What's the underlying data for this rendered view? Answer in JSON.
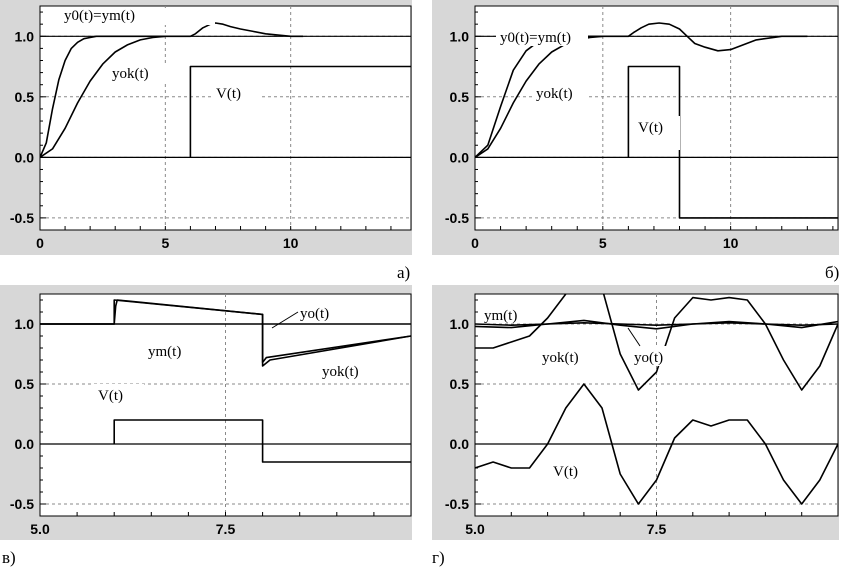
{
  "panel_labels": [
    "а)",
    "б)",
    "в)",
    "г)"
  ],
  "chart_data": [
    {
      "type": "line",
      "xlim": [
        0,
        14.8
      ],
      "ylim": [
        -0.6,
        1.25
      ],
      "xticks": [
        0,
        5,
        10
      ],
      "xtick_labels": [
        "0",
        "5",
        "10"
      ],
      "yticks": [
        1.0,
        0.5,
        0.0,
        -0.5
      ],
      "ytick_labels": [
        "1.0",
        "0.5",
        "0.0",
        "-0.5"
      ],
      "grid": true,
      "series": [
        {
          "name": "y0(t)=ym(t)",
          "x": [
            0,
            0.25,
            0.5,
            0.75,
            1,
            1.25,
            1.5,
            1.75,
            2,
            2.25,
            2.5,
            3,
            3.5,
            4,
            4.5,
            5,
            5.5,
            6,
            6.2,
            6.5,
            6.8,
            7,
            7.3,
            7.6,
            8,
            8.5,
            9,
            9.5,
            10,
            10.5
          ],
          "y": [
            0,
            0.12,
            0.4,
            0.64,
            0.8,
            0.9,
            0.95,
            0.98,
            0.99,
            1.0,
            1.0,
            1.0,
            1.0,
            1.0,
            1.0,
            1.0,
            1.0,
            1.0,
            1.02,
            1.07,
            1.1,
            1.11,
            1.1,
            1.08,
            1.06,
            1.04,
            1.02,
            1.01,
            1.0,
            1.0
          ]
        },
        {
          "name": "yok(t)",
          "x": [
            0,
            0.5,
            1,
            1.5,
            2,
            2.5,
            3,
            3.5,
            4,
            4.5,
            5
          ],
          "y": [
            0,
            0.07,
            0.24,
            0.45,
            0.63,
            0.77,
            0.87,
            0.93,
            0.97,
            0.99,
            1.0
          ]
        },
        {
          "name": "V(t)",
          "x": [
            6,
            6,
            14.8
          ],
          "y": [
            0,
            0.75,
            0.75
          ]
        },
        {
          "name": "",
          "x": [
            0,
            14.8
          ],
          "y": [
            0,
            0
          ]
        },
        {
          "name": "",
          "x": [
            0,
            14.8
          ],
          "y": [
            1,
            1
          ]
        }
      ],
      "annotations": [
        "y0(t)=ym(t)",
        "yok(t)",
        "V(t)"
      ]
    },
    {
      "type": "line",
      "xlim": [
        0,
        14.2
      ],
      "ylim": [
        -0.6,
        1.25
      ],
      "xticks": [
        0,
        5,
        10
      ],
      "xtick_labels": [
        "0",
        "5",
        "10"
      ],
      "yticks": [
        1.0,
        0.5,
        0.0,
        -0.5
      ],
      "ytick_labels": [
        "1.0",
        "0.5",
        "0.0",
        "-0.5"
      ],
      "grid": true,
      "series": [
        {
          "name": "y0(t)=ym(t)",
          "x": [
            0,
            0.5,
            1,
            1.5,
            2,
            2.5,
            3,
            3.5,
            4,
            5,
            6,
            6.2,
            6.5,
            6.8,
            7.2,
            7.6,
            8,
            8.3,
            8.6,
            9,
            9.5,
            10,
            10.5,
            11,
            12,
            13
          ],
          "y": [
            0,
            0.1,
            0.42,
            0.72,
            0.88,
            0.96,
            0.99,
            1.0,
            1.0,
            1.0,
            1.0,
            1.03,
            1.07,
            1.1,
            1.11,
            1.1,
            1.06,
            1.0,
            0.94,
            0.91,
            0.88,
            0.89,
            0.93,
            0.97,
            1.0,
            1.0
          ]
        },
        {
          "name": "yok(t)",
          "x": [
            0,
            0.5,
            1,
            1.5,
            2,
            2.5,
            3,
            3.5,
            4,
            4.5,
            5
          ],
          "y": [
            0,
            0.07,
            0.24,
            0.45,
            0.63,
            0.77,
            0.87,
            0.93,
            0.97,
            0.99,
            1.0
          ]
        },
        {
          "name": "V(t)",
          "x": [
            6,
            6,
            8,
            8,
            14.2
          ],
          "y": [
            0,
            0.75,
            0.75,
            -0.5,
            -0.5
          ]
        },
        {
          "name": "",
          "x": [
            0,
            14.2
          ],
          "y": [
            0,
            0
          ]
        },
        {
          "name": "",
          "x": [
            0,
            14.2
          ],
          "y": [
            1,
            1
          ]
        }
      ],
      "annotations": [
        "y0(t)=ym(t)",
        "yok(t)",
        "V(t)"
      ]
    },
    {
      "type": "line",
      "xlim": [
        5.0,
        10.0
      ],
      "ylim": [
        -0.6,
        1.25
      ],
      "xticks": [
        5.0,
        7.5
      ],
      "xtick_labels": [
        "5.0",
        "7.5"
      ],
      "yticks": [
        1.0,
        0.5,
        0.0,
        -0.5
      ],
      "ytick_labels": [
        "1.0",
        "0.5",
        "0.0",
        "-0.5"
      ],
      "grid": true,
      "series": [
        {
          "name": "ym(t)",
          "x": [
            5.0,
            6.0,
            6.0,
            8.0,
            8.0,
            8.1,
            10.0
          ],
          "y": [
            1.0,
            1.0,
            1.2,
            1.08,
            0.65,
            0.7,
            0.9
          ]
        },
        {
          "name": "yo(t)",
          "x": [
            5.0,
            10.0
          ],
          "y": [
            1.0,
            1.0
          ]
        },
        {
          "name": "yok(t)",
          "x": [
            5.0,
            6.0,
            6.02,
            6.04,
            8.0,
            8.0,
            8.05,
            10.0
          ],
          "y": [
            1.0,
            1.0,
            1.15,
            1.2,
            1.08,
            0.68,
            0.72,
            0.9
          ]
        },
        {
          "name": "V(t)",
          "x": [
            6.0,
            6.0,
            8.0,
            8.0,
            10.0
          ],
          "y": [
            0,
            0.2,
            0.2,
            -0.15,
            -0.15
          ]
        },
        {
          "name": "",
          "x": [
            5.0,
            10.0
          ],
          "y": [
            0,
            0
          ]
        }
      ],
      "annotations": [
        "ym(t)",
        "yo(t)",
        "yok(t)",
        "V(t)"
      ]
    },
    {
      "type": "line",
      "xlim": [
        5.0,
        10.0
      ],
      "ylim": [
        -0.6,
        1.25
      ],
      "xticks": [
        5.0,
        7.5
      ],
      "xtick_labels": [
        "5.0",
        "7.5"
      ],
      "yticks": [
        1.0,
        0.5,
        0.0,
        -0.5
      ],
      "ytick_labels": [
        "1.0",
        "0.5",
        "0.0",
        "-0.5"
      ],
      "grid": true,
      "series": [
        {
          "name": "V(t)",
          "x": [
            5.0,
            5.25,
            5.5,
            5.75,
            6.0,
            6.25,
            6.5,
            6.75,
            7.0,
            7.25,
            7.5,
            7.75,
            8.0,
            8.25,
            8.5,
            8.75,
            9.0,
            9.25,
            9.5,
            9.75,
            10.0
          ],
          "y": [
            -0.2,
            -0.15,
            -0.2,
            -0.2,
            0.0,
            0.3,
            0.5,
            0.3,
            -0.25,
            -0.5,
            -0.3,
            0.05,
            0.2,
            0.15,
            0.2,
            0.2,
            0.0,
            -0.3,
            -0.5,
            -0.3,
            0.0
          ]
        },
        {
          "name": "yok(t)",
          "x": [
            5.0,
            5.25,
            5.5,
            5.75,
            6.0,
            6.25,
            6.5,
            6.75,
            7.0,
            7.25,
            7.5,
            7.75,
            8.0,
            8.25,
            8.5,
            8.75,
            9.0,
            9.25,
            9.5,
            9.75,
            10.0
          ],
          "y": [
            0.8,
            0.8,
            0.85,
            0.9,
            1.05,
            1.25,
            1.45,
            1.3,
            0.75,
            0.45,
            0.6,
            1.05,
            1.22,
            1.2,
            1.22,
            1.2,
            1.0,
            0.7,
            0.45,
            0.65,
            1.0
          ]
        },
        {
          "name": "yo(t)",
          "x": [
            5.0,
            5.5,
            6.0,
            6.5,
            7.0,
            7.5,
            8.0,
            8.5,
            9.0,
            9.5,
            10.0
          ],
          "y": [
            0.98,
            0.97,
            1.0,
            1.03,
            0.99,
            0.96,
            1.0,
            1.02,
            1.0,
            0.97,
            1.02
          ]
        },
        {
          "name": "ym(t)",
          "x": [
            5.0,
            5.5,
            6.0,
            6.5,
            7.0,
            7.5,
            8.0,
            8.5,
            9.0,
            9.5,
            10.0
          ],
          "y": [
            1.0,
            0.99,
            1.0,
            1.01,
            1.0,
            0.99,
            1.0,
            1.01,
            1.0,
            0.99,
            1.0
          ]
        },
        {
          "name": "",
          "x": [
            5.0,
            10.0
          ],
          "y": [
            0,
            0
          ]
        }
      ],
      "annotations": [
        "ym(t)",
        "yok(t)",
        "yo(t)",
        "V(t)"
      ]
    }
  ]
}
